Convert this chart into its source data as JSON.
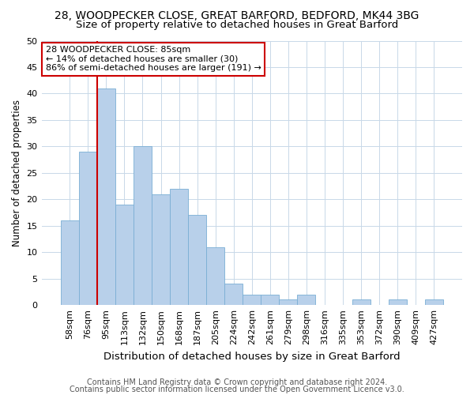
{
  "title1": "28, WOODPECKER CLOSE, GREAT BARFORD, BEDFORD, MK44 3BG",
  "title2": "Size of property relative to detached houses in Great Barford",
  "xlabel": "Distribution of detached houses by size in Great Barford",
  "ylabel": "Number of detached properties",
  "categories": [
    "58sqm",
    "76sqm",
    "95sqm",
    "113sqm",
    "132sqm",
    "150sqm",
    "168sqm",
    "187sqm",
    "205sqm",
    "224sqm",
    "242sqm",
    "261sqm",
    "279sqm",
    "298sqm",
    "316sqm",
    "335sqm",
    "353sqm",
    "372sqm",
    "390sqm",
    "409sqm",
    "427sqm"
  ],
  "values": [
    16,
    29,
    41,
    19,
    30,
    21,
    22,
    17,
    11,
    4,
    2,
    2,
    1,
    2,
    0,
    0,
    1,
    0,
    1,
    0,
    1
  ],
  "bar_color": "#b8d0ea",
  "bar_edge_color": "#7aaed4",
  "vline_color": "#cc0000",
  "vline_x": 1.5,
  "annotation_text": "28 WOODPECKER CLOSE: 85sqm\n← 14% of detached houses are smaller (30)\n86% of semi-detached houses are larger (191) →",
  "annotation_box_color": "#ffffff",
  "annotation_box_edge": "#cc0000",
  "ylim": [
    0,
    50
  ],
  "yticks": [
    0,
    5,
    10,
    15,
    20,
    25,
    30,
    35,
    40,
    45,
    50
  ],
  "footer1": "Contains HM Land Registry data © Crown copyright and database right 2024.",
  "footer2": "Contains public sector information licensed under the Open Government Licence v3.0.",
  "bg_color": "#ffffff",
  "grid_color": "#c8d8e8",
  "title1_fontsize": 10,
  "title2_fontsize": 9.5,
  "xlabel_fontsize": 9.5,
  "ylabel_fontsize": 8.5,
  "tick_fontsize": 8,
  "footer_fontsize": 7,
  "annot_fontsize": 8
}
